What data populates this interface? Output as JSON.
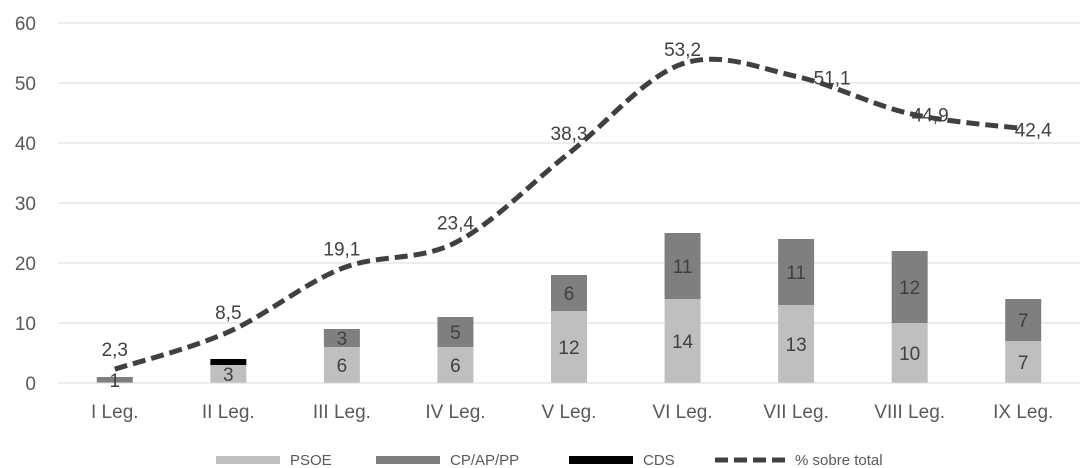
{
  "colors": {
    "PSOE": "#bfbfbf",
    "CP/AP/PP": "#7f7f7f",
    "CDS": "#000000",
    "% sobre total": "#404040",
    "grid": "#d9d9d9",
    "axis": "#d9d9d9",
    "text": "#595959",
    "labels": "#404040"
  },
  "chart_data": {
    "type": "bar",
    "stacked": true,
    "categories": [
      "I Leg.",
      "II Leg.",
      "III Leg.",
      "IV Leg.",
      "V Leg.",
      "VI Leg.",
      "VII Leg.",
      "VIII Leg.",
      "IX Leg."
    ],
    "ylim": [
      0,
      60
    ],
    "yticks": [
      0,
      10,
      20,
      30,
      40,
      50,
      60
    ],
    "grid": true,
    "legend_position": "bottom",
    "series": [
      {
        "name": "PSOE",
        "type": "bar",
        "values": [
          0,
          3,
          6,
          6,
          12,
          14,
          13,
          10,
          7
        ],
        "labels": [
          "",
          "3",
          "6",
          "6",
          "12",
          "14",
          "13",
          "10",
          "7"
        ]
      },
      {
        "name": "CP/AP/PP",
        "type": "bar",
        "values": [
          1,
          0,
          3,
          5,
          6,
          11,
          11,
          12,
          7
        ],
        "labels": [
          "1",
          "",
          "3",
          "5",
          "6",
          "11",
          "11",
          "12",
          "7"
        ]
      },
      {
        "name": "CDS",
        "type": "bar",
        "values": [
          0,
          1,
          0,
          0,
          0,
          0,
          0,
          0,
          0
        ],
        "labels": [
          "",
          "",
          "",
          "",
          "",
          "",
          "",
          "",
          ""
        ]
      },
      {
        "name": "% sobre total",
        "type": "line",
        "style": "dashed",
        "values": [
          2.3,
          8.5,
          19.1,
          23.4,
          38.3,
          53.2,
          51.1,
          44.9,
          42.4
        ],
        "labels": [
          "2,3",
          "8,5",
          "19,1",
          "23,4",
          "38,3",
          "53,2",
          "51,1",
          "44,9",
          "42,4"
        ]
      }
    ]
  }
}
